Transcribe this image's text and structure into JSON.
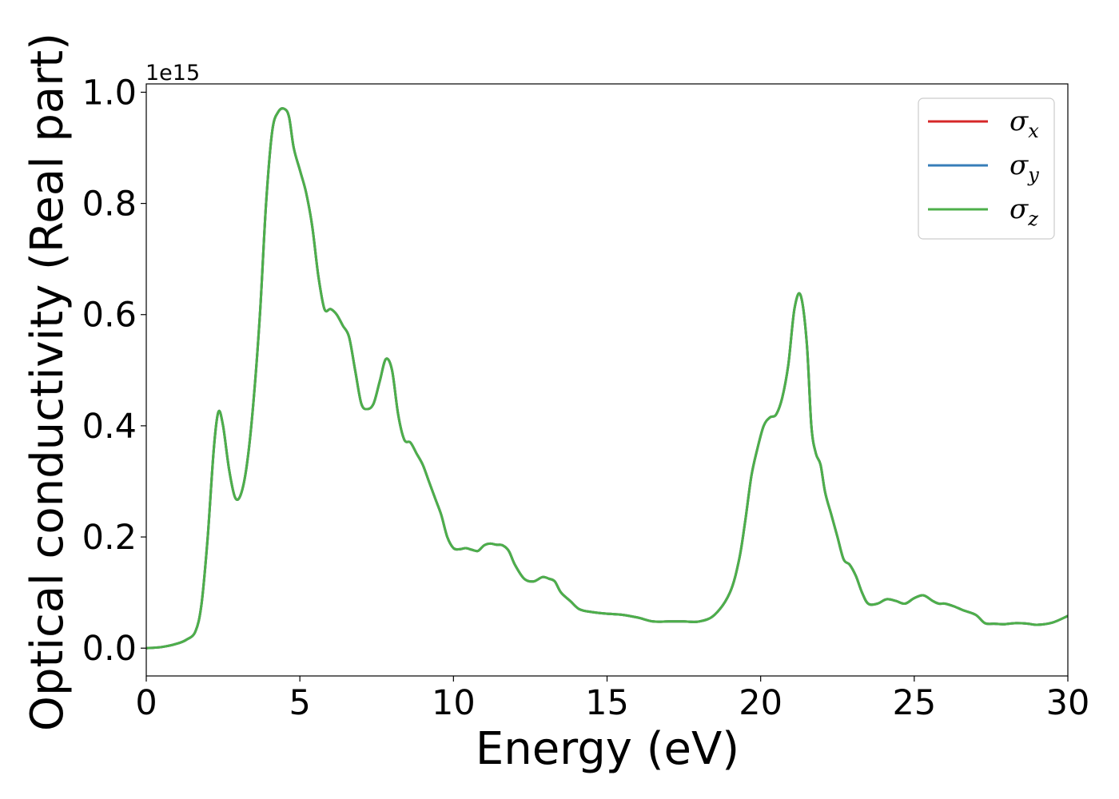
{
  "chart_data": {
    "type": "line",
    "xlabel": "Energy (eV)",
    "ylabel": "Optical conductivity (Real part)",
    "y_offset_label": "1e15",
    "xlim": [
      0,
      30
    ],
    "ylim": [
      -0.05,
      1.015
    ],
    "y_scale_factor": 1000000000000000.0,
    "x_ticks": [
      0,
      5,
      10,
      15,
      20,
      25,
      30
    ],
    "x_tick_labels": [
      "0",
      "5",
      "10",
      "15",
      "20",
      "25",
      "30"
    ],
    "y_ticks": [
      0.0,
      0.2,
      0.4,
      0.6,
      0.8,
      1.0
    ],
    "y_tick_labels": [
      "0.0",
      "0.2",
      "0.4",
      "0.6",
      "0.8",
      "1.0"
    ],
    "grid": false,
    "legend_position": "top-right",
    "x": [
      0,
      0.5,
      1.0,
      1.3,
      1.6,
      1.8,
      2.0,
      2.2,
      2.35,
      2.5,
      2.7,
      2.9,
      3.1,
      3.3,
      3.5,
      3.7,
      3.9,
      4.1,
      4.3,
      4.5,
      4.65,
      4.8,
      5.0,
      5.2,
      5.4,
      5.6,
      5.8,
      6.0,
      6.2,
      6.4,
      6.6,
      6.8,
      7.0,
      7.2,
      7.4,
      7.6,
      7.8,
      8.0,
      8.2,
      8.4,
      8.6,
      8.8,
      9.0,
      9.2,
      9.4,
      9.6,
      9.8,
      10.0,
      10.2,
      10.4,
      10.6,
      10.8,
      11.0,
      11.2,
      11.4,
      11.6,
      11.8,
      12.0,
      12.3,
      12.6,
      12.9,
      13.1,
      13.3,
      13.5,
      13.8,
      14.1,
      14.5,
      15.0,
      15.5,
      16.0,
      16.5,
      17.0,
      17.5,
      18.0,
      18.5,
      19.0,
      19.3,
      19.5,
      19.7,
      19.9,
      20.1,
      20.3,
      20.5,
      20.7,
      20.9,
      21.1,
      21.3,
      21.5,
      21.65,
      21.8,
      21.95,
      22.1,
      22.3,
      22.5,
      22.7,
      22.9,
      23.1,
      23.3,
      23.5,
      23.8,
      24.1,
      24.4,
      24.7,
      25.0,
      25.3,
      25.6,
      25.8,
      26.0,
      26.3,
      26.6,
      27.0,
      27.3,
      27.6,
      27.9,
      28.3,
      28.7,
      29.0,
      29.5,
      30.0
    ],
    "series": [
      {
        "name": "σx",
        "symbol": "σ",
        "subscript": "x",
        "color": "#d62728",
        "values": [
          0.0,
          0.002,
          0.008,
          0.015,
          0.03,
          0.08,
          0.2,
          0.36,
          0.425,
          0.4,
          0.32,
          0.27,
          0.28,
          0.34,
          0.45,
          0.6,
          0.8,
          0.93,
          0.965,
          0.97,
          0.955,
          0.9,
          0.86,
          0.82,
          0.76,
          0.67,
          0.61,
          0.61,
          0.6,
          0.58,
          0.56,
          0.5,
          0.44,
          0.43,
          0.44,
          0.48,
          0.52,
          0.5,
          0.42,
          0.375,
          0.37,
          0.35,
          0.33,
          0.3,
          0.27,
          0.24,
          0.2,
          0.18,
          0.178,
          0.18,
          0.177,
          0.175,
          0.185,
          0.188,
          0.186,
          0.185,
          0.175,
          0.15,
          0.125,
          0.12,
          0.128,
          0.125,
          0.12,
          0.1,
          0.085,
          0.07,
          0.065,
          0.062,
          0.06,
          0.055,
          0.048,
          0.048,
          0.048,
          0.048,
          0.06,
          0.1,
          0.16,
          0.23,
          0.31,
          0.36,
          0.4,
          0.415,
          0.42,
          0.45,
          0.51,
          0.61,
          0.635,
          0.55,
          0.4,
          0.35,
          0.33,
          0.28,
          0.24,
          0.2,
          0.16,
          0.15,
          0.13,
          0.1,
          0.08,
          0.08,
          0.088,
          0.085,
          0.08,
          0.09,
          0.095,
          0.085,
          0.08,
          0.08,
          0.075,
          0.068,
          0.06,
          0.045,
          0.044,
          0.043,
          0.045,
          0.044,
          0.042,
          0.046,
          0.058
        ]
      },
      {
        "name": "σy",
        "symbol": "σ",
        "subscript": "y",
        "color": "#377eb8",
        "values": [
          0.0,
          0.002,
          0.008,
          0.015,
          0.03,
          0.08,
          0.2,
          0.36,
          0.425,
          0.4,
          0.32,
          0.27,
          0.28,
          0.34,
          0.45,
          0.6,
          0.8,
          0.93,
          0.965,
          0.97,
          0.955,
          0.9,
          0.86,
          0.82,
          0.76,
          0.67,
          0.61,
          0.61,
          0.6,
          0.58,
          0.56,
          0.5,
          0.44,
          0.43,
          0.44,
          0.48,
          0.52,
          0.5,
          0.42,
          0.375,
          0.37,
          0.35,
          0.33,
          0.3,
          0.27,
          0.24,
          0.2,
          0.18,
          0.178,
          0.18,
          0.177,
          0.175,
          0.185,
          0.188,
          0.186,
          0.185,
          0.175,
          0.15,
          0.125,
          0.12,
          0.128,
          0.125,
          0.12,
          0.1,
          0.085,
          0.07,
          0.065,
          0.062,
          0.06,
          0.055,
          0.048,
          0.048,
          0.048,
          0.048,
          0.06,
          0.1,
          0.16,
          0.23,
          0.31,
          0.36,
          0.4,
          0.415,
          0.42,
          0.45,
          0.51,
          0.61,
          0.635,
          0.55,
          0.4,
          0.35,
          0.33,
          0.28,
          0.24,
          0.2,
          0.16,
          0.15,
          0.13,
          0.1,
          0.08,
          0.08,
          0.088,
          0.085,
          0.08,
          0.09,
          0.095,
          0.085,
          0.08,
          0.08,
          0.075,
          0.068,
          0.06,
          0.045,
          0.044,
          0.043,
          0.045,
          0.044,
          0.042,
          0.046,
          0.058
        ]
      },
      {
        "name": "σz",
        "symbol": "σ",
        "subscript": "z",
        "color": "#4daf4a",
        "values": [
          0.0,
          0.002,
          0.008,
          0.015,
          0.03,
          0.08,
          0.2,
          0.36,
          0.425,
          0.4,
          0.32,
          0.27,
          0.28,
          0.34,
          0.45,
          0.6,
          0.8,
          0.93,
          0.965,
          0.97,
          0.955,
          0.9,
          0.86,
          0.82,
          0.76,
          0.67,
          0.61,
          0.61,
          0.6,
          0.58,
          0.56,
          0.5,
          0.44,
          0.43,
          0.44,
          0.48,
          0.52,
          0.5,
          0.42,
          0.375,
          0.37,
          0.35,
          0.33,
          0.3,
          0.27,
          0.24,
          0.2,
          0.18,
          0.178,
          0.18,
          0.177,
          0.175,
          0.185,
          0.188,
          0.186,
          0.185,
          0.175,
          0.15,
          0.125,
          0.12,
          0.128,
          0.125,
          0.12,
          0.1,
          0.085,
          0.07,
          0.065,
          0.062,
          0.06,
          0.055,
          0.048,
          0.048,
          0.048,
          0.048,
          0.06,
          0.1,
          0.16,
          0.23,
          0.31,
          0.36,
          0.4,
          0.415,
          0.42,
          0.45,
          0.51,
          0.61,
          0.635,
          0.55,
          0.4,
          0.35,
          0.33,
          0.28,
          0.24,
          0.2,
          0.16,
          0.15,
          0.13,
          0.1,
          0.08,
          0.08,
          0.088,
          0.085,
          0.08,
          0.09,
          0.095,
          0.085,
          0.08,
          0.08,
          0.075,
          0.068,
          0.06,
          0.045,
          0.044,
          0.043,
          0.045,
          0.044,
          0.042,
          0.046,
          0.058
        ]
      }
    ]
  }
}
